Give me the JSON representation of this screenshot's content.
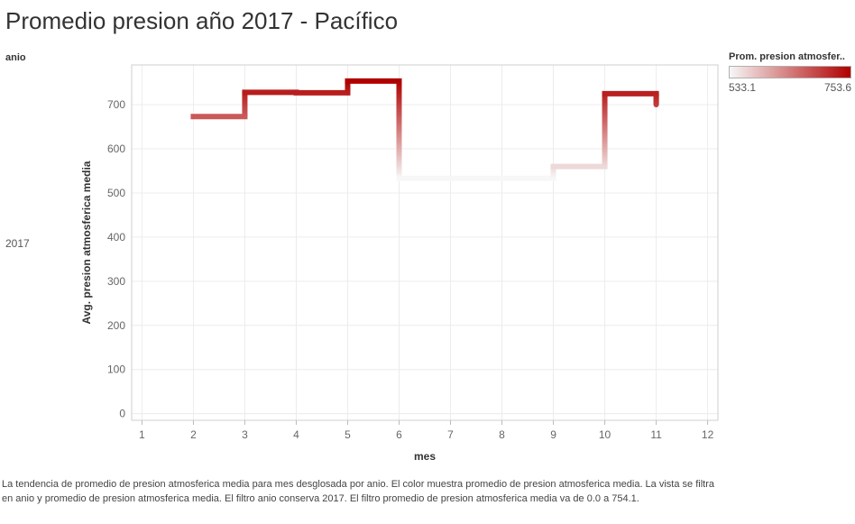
{
  "title": "Promedio presion año 2017 - Pacífico",
  "rows": {
    "header": "anio",
    "value": "2017"
  },
  "legend": {
    "title": "Prom. presion atmosfer..",
    "min_label": "533.1",
    "max_label": "753.6",
    "color_low": "#f7f7f7",
    "color_high": "#b00000"
  },
  "caption": "La tendencia de promedio de presion atmosferica media para mes desglosada por anio.  El color muestra promedio de presion atmosferica media. La vista se filtra en anio y promedio de presion atmosferica media. El filtro anio conserva 2017. El filtro promedio de presion atmosferica media va de 0.0 a 754.1.",
  "chart_data": {
    "type": "line",
    "subtype": "step",
    "xlabel": "mes",
    "ylabel": "Avg. presion atmosferica media",
    "xlim": [
      0.8,
      12.2
    ],
    "ylim": [
      -15,
      790
    ],
    "x_ticks": [
      1,
      2,
      3,
      4,
      5,
      6,
      7,
      8,
      9,
      10,
      11,
      12
    ],
    "y_ticks": [
      0,
      100,
      200,
      300,
      400,
      500,
      600,
      700
    ],
    "grid": true,
    "color_scale": {
      "min": 533.1,
      "max": 753.6
    },
    "series": [
      {
        "x": [
          2,
          3,
          4,
          5,
          6,
          9,
          10,
          11
        ],
        "y": [
          673,
          728,
          727,
          753.6,
          533.1,
          560,
          725,
          700
        ]
      }
    ]
  }
}
